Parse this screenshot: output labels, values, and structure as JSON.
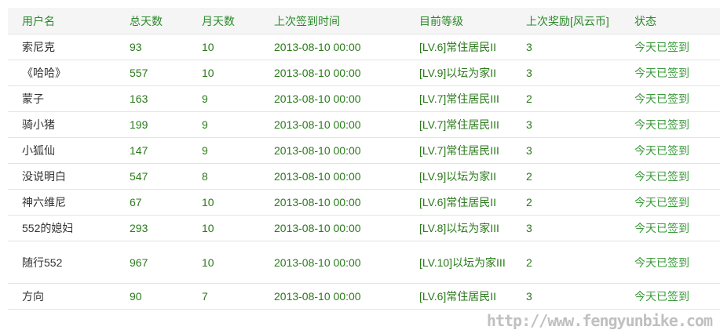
{
  "headers": [
    "用户名",
    "总天数",
    "月天数",
    "上次签到时间",
    "目前等级",
    "上次奖励[风云币]",
    "状态"
  ],
  "rows": [
    [
      "索尼克",
      "93",
      "10",
      "2013-08-10 00:00",
      "[LV.6]常住居民II",
      "3",
      "今天已签到"
    ],
    [
      "《哈哈》",
      "557",
      "10",
      "2013-08-10 00:00",
      "[LV.9]以坛为家II",
      "3",
      "今天已签到"
    ],
    [
      "蒙子",
      "163",
      "9",
      "2013-08-10 00:00",
      "[LV.7]常住居民III",
      "2",
      "今天已签到"
    ],
    [
      "骑小猪",
      "199",
      "9",
      "2013-08-10 00:00",
      "[LV.7]常住居民III",
      "3",
      "今天已签到"
    ],
    [
      "小狐仙",
      "147",
      "9",
      "2013-08-10 00:00",
      "[LV.7]常住居民III",
      "3",
      "今天已签到"
    ],
    [
      "没说明白",
      "547",
      "8",
      "2013-08-10 00:00",
      "[LV.9]以坛为家II",
      "2",
      "今天已签到"
    ],
    [
      "神六维尼",
      "67",
      "10",
      "2013-08-10 00:00",
      "[LV.6]常住居民II",
      "2",
      "今天已签到"
    ],
    [
      "552的媳妇",
      "293",
      "10",
      "2013-08-10 00:00",
      "[LV.8]以坛为家III",
      "3",
      "今天已签到"
    ],
    [
      "随行552",
      "967",
      "10",
      "2013-08-10 00:00",
      "[LV.10]以坛为家III",
      "2",
      "今天已签到"
    ],
    [
      "方向",
      "90",
      "7",
      "2013-08-10 00:00",
      "[LV.6]常住居民II",
      "3",
      "今天已签到"
    ]
  ],
  "watermark": "http://www.fengyunbike.com"
}
